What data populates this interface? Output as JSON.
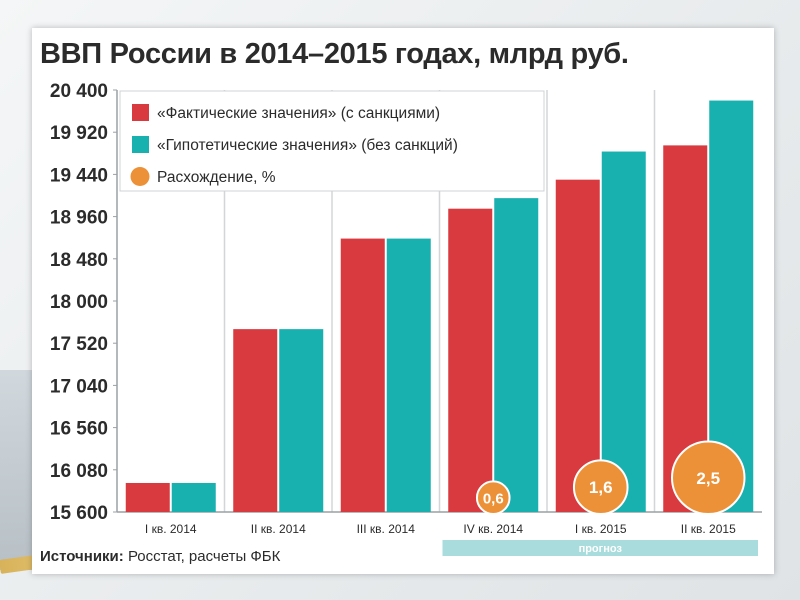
{
  "page": {
    "title": "ВВП России в 2014–2015 годах, млрд руб.",
    "source_label": "Источники:",
    "source_text": "Росстат, расчеты ФБК"
  },
  "colors": {
    "actual": "#d83a3f",
    "hypothetical": "#19b0b0",
    "divergence": "#ec9137",
    "forecast_band": "#a9dcdc",
    "text": "#2b2b2b"
  },
  "chart_data": {
    "type": "bar",
    "title": "ВВП России в 2014–2015 годах, млрд руб.",
    "xlabel": "",
    "ylabel": "",
    "categories": [
      "I кв. 2014",
      "II кв. 2014",
      "III кв. 2014",
      "IV кв. 2014",
      "I кв. 2015",
      "II кв. 2015"
    ],
    "ylim": [
      15600,
      20400
    ],
    "yticks": [
      "15 600",
      "16 080",
      "16 560",
      "17 040",
      "17 520",
      "18 000",
      "18 480",
      "18 960",
      "19 440",
      "19 920",
      "20 400"
    ],
    "ytick_values": [
      15600,
      16080,
      16560,
      17040,
      17520,
      18000,
      18480,
      18960,
      19440,
      19920,
      20400
    ],
    "series": [
      {
        "name": "«Фактические значения» (с санкциями)",
        "values": [
          15930,
          17680,
          18710,
          19050,
          19380,
          19770
        ]
      },
      {
        "name": "«Гипотетические значения» (без санкций)",
        "values": [
          15930,
          17680,
          18710,
          19170,
          19700,
          20280
        ]
      }
    ],
    "divergence": {
      "name": "Расхождение, %",
      "labels": [
        "",
        "",
        "",
        "0,6",
        "1,6",
        "2,5"
      ],
      "values": [
        null,
        null,
        null,
        0.6,
        1.6,
        2.5
      ]
    },
    "forecast": {
      "label": "прогноз",
      "from_category": "IV кв. 2014",
      "to_category": "II кв. 2015"
    },
    "legend_placement": "top-left",
    "grid": "vertical"
  }
}
